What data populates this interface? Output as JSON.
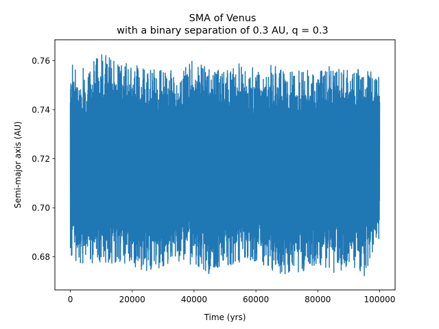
{
  "chart_data": {
    "type": "line",
    "title": "SMA of Venus",
    "subtitle": "with a binary separation of 0.3 AU, q = 0.3",
    "xlabel": "Time (yrs)",
    "ylabel": "Semi-major axis (AU)",
    "xlim": [
      -5000,
      105000
    ],
    "ylim": [
      0.6665,
      0.7685
    ],
    "xticks": [
      0,
      20000,
      40000,
      60000,
      80000,
      100000
    ],
    "xtick_labels": [
      "0",
      "20000",
      "40000",
      "60000",
      "80000",
      "100000"
    ],
    "yticks": [
      0.68,
      0.7,
      0.72,
      0.74,
      0.76
    ],
    "ytick_labels": [
      "0.68",
      "0.70",
      "0.72",
      "0.74",
      "0.76"
    ],
    "grid": false,
    "series": [
      {
        "color": "#1f77b4",
        "description": "rapid oscillation of semi-major axis between a minimum and maximum envelope; values below are the envelope at each time",
        "x": [
          0,
          5000,
          10000,
          15000,
          20000,
          25000,
          30000,
          35000,
          40000,
          45000,
          50000,
          55000,
          60000,
          65000,
          70000,
          75000,
          80000,
          85000,
          90000,
          95000,
          100000
        ],
        "max": [
          0.762,
          0.756,
          0.764,
          0.76,
          0.759,
          0.757,
          0.758,
          0.755,
          0.761,
          0.757,
          0.756,
          0.759,
          0.757,
          0.759,
          0.755,
          0.757,
          0.755,
          0.76,
          0.756,
          0.758,
          0.753
        ],
        "min": [
          0.675,
          0.676,
          0.678,
          0.677,
          0.676,
          0.674,
          0.676,
          0.678,
          0.676,
          0.673,
          0.676,
          0.678,
          0.677,
          0.674,
          0.671,
          0.674,
          0.677,
          0.673,
          0.676,
          0.672,
          0.688
        ],
        "mean": 0.7185
      }
    ]
  }
}
